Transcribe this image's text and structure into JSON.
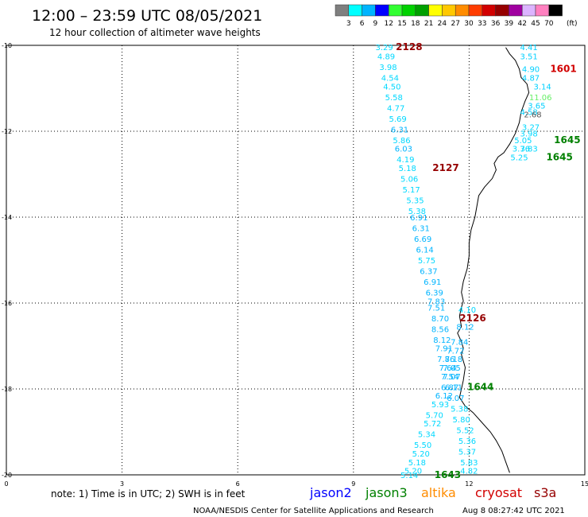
{
  "title": "12:00 – 23:59 UTC 08/05/2021",
  "subtitle": "12 hour collection of altimeter wave heights",
  "colorbar": {
    "values": [
      "3",
      "6",
      "9",
      "12",
      "15",
      "18",
      "21",
      "24",
      "27",
      "30",
      "33",
      "36",
      "39",
      "42",
      "45",
      "70"
    ],
    "colors": [
      "#7f7f7f",
      "#00ffff",
      "#00b4ff",
      "#0000ff",
      "#32ff32",
      "#00d200",
      "#00a000",
      "#ffff00",
      "#ffc800",
      "#ff8c00",
      "#ff3c00",
      "#d20000",
      "#960000",
      "#a000a0",
      "#dcb4ff",
      "#ff80c0",
      "#000000"
    ],
    "unit": "(ft)"
  },
  "note": "note:  1) Time is in UTC;  2) SWH is in feet",
  "credit": "NOAA/NESDIS Center for Satellite Applications and Research",
  "timestamp": "Aug  8 08:27:42 UTC 2021",
  "legend": [
    {
      "name": "jason2",
      "color": "#0000ff"
    },
    {
      "name": "jason3",
      "color": "#008000"
    },
    {
      "name": "altika",
      "color": "#ff8c00"
    },
    {
      "name": "cryosat",
      "color": "#d20000"
    },
    {
      "name": "s3a",
      "color": "#960000"
    }
  ],
  "chart_data": {
    "type": "scatter",
    "xlim": [
      0,
      15
    ],
    "ylim": [
      -20,
      -10
    ],
    "xticks": [
      "0",
      "3",
      "6",
      "9",
      "12",
      "15"
    ],
    "yticks": [
      "-10",
      "-12",
      "-14",
      "-16",
      "-18",
      "-20"
    ],
    "grid": true,
    "coastline": [
      [
        12.95,
        -10.05
      ],
      [
        13.05,
        -10.2
      ],
      [
        13.2,
        -10.35
      ],
      [
        13.3,
        -10.55
      ],
      [
        13.35,
        -10.75
      ],
      [
        13.5,
        -10.9
      ],
      [
        13.55,
        -11.1
      ],
      [
        13.45,
        -11.3
      ],
      [
        13.35,
        -11.55
      ],
      [
        13.3,
        -11.8
      ],
      [
        13.2,
        -12.05
      ],
      [
        13.05,
        -12.3
      ],
      [
        12.9,
        -12.5
      ],
      [
        12.75,
        -12.6
      ],
      [
        12.65,
        -12.75
      ],
      [
        12.7,
        -12.9
      ],
      [
        12.6,
        -13.1
      ],
      [
        12.4,
        -13.3
      ],
      [
        12.25,
        -13.5
      ],
      [
        12.2,
        -13.75
      ],
      [
        12.15,
        -14.0
      ],
      [
        12.05,
        -14.3
      ],
      [
        12.0,
        -14.6
      ],
      [
        12.0,
        -14.9
      ],
      [
        11.95,
        -15.2
      ],
      [
        11.85,
        -15.5
      ],
      [
        11.8,
        -15.75
      ],
      [
        11.85,
        -15.95
      ],
      [
        11.8,
        -16.1
      ],
      [
        11.75,
        -16.3
      ],
      [
        11.8,
        -16.55
      ],
      [
        11.7,
        -16.7
      ],
      [
        11.8,
        -16.9
      ],
      [
        11.85,
        -17.05
      ],
      [
        11.8,
        -17.2
      ],
      [
        11.9,
        -17.5
      ],
      [
        11.85,
        -17.8
      ],
      [
        11.8,
        -18.0
      ],
      [
        11.75,
        -18.2
      ],
      [
        11.9,
        -18.4
      ],
      [
        12.1,
        -18.55
      ],
      [
        12.3,
        -18.75
      ],
      [
        12.55,
        -19.0
      ],
      [
        12.7,
        -19.2
      ],
      [
        12.85,
        -19.45
      ],
      [
        12.95,
        -19.7
      ],
      [
        13.05,
        -19.95
      ]
    ],
    "series": [
      {
        "name": "2128",
        "color": "#960000",
        "label_pos": [
          10.1,
          -10.04
        ],
        "points": [
          {
            "x": 9.8,
            "y": -10.04,
            "v": "3.29"
          },
          {
            "x": 9.85,
            "y": -10.25,
            "v": "4.89"
          },
          {
            "x": 9.9,
            "y": -10.5,
            "v": "3.98"
          },
          {
            "x": 9.95,
            "y": -10.75,
            "v": "4.54"
          },
          {
            "x": 10.0,
            "y": -10.95,
            "v": "4.50"
          },
          {
            "x": 10.05,
            "y": -11.2,
            "v": "5.58"
          },
          {
            "x": 10.1,
            "y": -11.45,
            "v": "4.77"
          },
          {
            "x": 10.15,
            "y": -11.7,
            "v": "5.69"
          },
          {
            "x": 10.2,
            "y": -11.95,
            "v": "6.31"
          },
          {
            "x": 10.25,
            "y": -12.2,
            "v": "5.86"
          },
          {
            "x": 10.3,
            "y": -12.4,
            "v": "6.03"
          },
          {
            "x": 10.35,
            "y": -12.65,
            "v": "4.19"
          },
          {
            "x": 10.4,
            "y": -12.85,
            "v": "5.18"
          }
        ]
      },
      {
        "name": "2127",
        "color": "#960000",
        "label_pos": [
          11.05,
          -12.85
        ],
        "points": [
          {
            "x": 10.45,
            "y": -13.1,
            "v": "5.06"
          },
          {
            "x": 10.5,
            "y": -13.35,
            "v": "5.17"
          },
          {
            "x": 10.6,
            "y": -13.6,
            "v": "5.35"
          },
          {
            "x": 10.65,
            "y": -13.85,
            "v": "5.38"
          },
          {
            "x": 10.7,
            "y": -14.0,
            "v": "6.91"
          },
          {
            "x": 10.75,
            "y": -14.25,
            "v": "6.31"
          },
          {
            "x": 10.8,
            "y": -14.5,
            "v": "6.69"
          },
          {
            "x": 10.85,
            "y": -14.75,
            "v": "6.14"
          },
          {
            "x": 10.9,
            "y": -15.0,
            "v": "5.75"
          },
          {
            "x": 10.95,
            "y": -15.25,
            "v": "6.37"
          },
          {
            "x": 11.05,
            "y": -15.5,
            "v": "6.91"
          },
          {
            "x": 11.1,
            "y": -15.75,
            "v": "6.39"
          },
          {
            "x": 11.15,
            "y": -15.95,
            "v": "7.83"
          },
          {
            "x": 11.15,
            "y": -16.1,
            "v": "7.51"
          },
          {
            "x": 11.25,
            "y": -16.35,
            "v": "8.70"
          },
          {
            "x": 11.25,
            "y": -16.6,
            "v": "8.56"
          },
          {
            "x": 11.3,
            "y": -16.85,
            "v": "8.12"
          },
          {
            "x": 11.35,
            "y": -17.05,
            "v": "7.91"
          },
          {
            "x": 11.4,
            "y": -17.3,
            "v": "7.86"
          },
          {
            "x": 11.45,
            "y": -17.5,
            "v": "7.64"
          },
          {
            "x": 11.5,
            "y": -17.7,
            "v": "7.54"
          },
          {
            "x": 11.5,
            "y": -17.95,
            "v": "6.87"
          },
          {
            "x": 11.35,
            "y": -18.15,
            "v": "6.12"
          },
          {
            "x": 11.25,
            "y": -18.35,
            "v": "5.93"
          },
          {
            "x": 11.1,
            "y": -18.6,
            "v": "5.70"
          },
          {
            "x": 11.05,
            "y": -18.8,
            "v": "5.72"
          },
          {
            "x": 10.9,
            "y": -19.05,
            "v": "5.34"
          },
          {
            "x": 10.8,
            "y": -19.3,
            "v": "5.50"
          },
          {
            "x": 10.75,
            "y": -19.5,
            "v": "5.20"
          },
          {
            "x": 10.65,
            "y": -19.7,
            "v": "5.18"
          },
          {
            "x": 10.55,
            "y": -19.9,
            "v": "5.20"
          },
          {
            "x": 10.45,
            "y": -20.0,
            "v": "5.14"
          }
        ]
      },
      {
        "name": "1643",
        "color": "#008000",
        "label_pos": [
          11.1,
          -20.0
        ],
        "points": [
          {
            "x": 12.0,
            "y": -19.9,
            "v": "4.82"
          },
          {
            "x": 12.0,
            "y": -19.7,
            "v": "5.83"
          },
          {
            "x": 11.95,
            "y": -19.45,
            "v": "5.37"
          },
          {
            "x": 11.95,
            "y": -19.2,
            "v": "5.36"
          },
          {
            "x": 11.9,
            "y": -18.95,
            "v": "5.52"
          },
          {
            "x": 11.8,
            "y": -18.7,
            "v": "5.80"
          },
          {
            "x": 11.75,
            "y": -18.45,
            "v": "5.38"
          },
          {
            "x": 11.65,
            "y": -18.2,
            "v": "6.07"
          }
        ]
      },
      {
        "name": "1644",
        "color": "#008000",
        "label_pos": [
          11.95,
          -17.95
        ],
        "points": [
          {
            "x": 11.6,
            "y": -17.95,
            "v": "6.11"
          },
          {
            "x": 11.55,
            "y": -17.7,
            "v": "7.07"
          },
          {
            "x": 11.55,
            "y": -17.5,
            "v": "7.05"
          },
          {
            "x": 11.6,
            "y": -17.3,
            "v": "7.18"
          },
          {
            "x": 11.65,
            "y": -17.1,
            "v": "7.72"
          },
          {
            "x": 11.75,
            "y": -16.9,
            "v": "7.84"
          },
          {
            "x": 11.9,
            "y": -16.55,
            "v": "8.12"
          },
          {
            "x": 11.95,
            "y": -16.15,
            "v": "4.10"
          }
        ]
      },
      {
        "name": "2126",
        "color": "#960000",
        "label_pos": [
          11.75,
          -16.35
        ],
        "points": []
      },
      {
        "name": "1645",
        "color": "#008000",
        "label_pos": [
          14.2,
          -12.2
        ],
        "points": [
          {
            "x": 13.3,
            "y": -12.6,
            "v": "5.25"
          },
          {
            "x": 13.35,
            "y": -12.4,
            "v": "3.76"
          },
          {
            "x": 13.55,
            "y": -12.4,
            "v": "3.83"
          },
          {
            "x": 13.4,
            "y": -12.2,
            "v": "5.05"
          },
          {
            "x": 13.55,
            "y": -12.05,
            "v": "3.98"
          },
          {
            "x": 13.6,
            "y": -11.9,
            "v": "3.27"
          }
        ]
      },
      {
        "name": "1645",
        "color": "#008000",
        "label_pos": [
          14.0,
          -12.6
        ],
        "points": []
      },
      {
        "name": "1601",
        "color": "#d20000",
        "label_pos": [
          14.1,
          -10.55
        ],
        "points": [
          {
            "x": 13.55,
            "y": -11.55,
            "v": "4.58"
          },
          {
            "x": 13.65,
            "y": -11.6,
            "v": "2.68"
          },
          {
            "x": 13.75,
            "y": -11.4,
            "v": "3.65"
          },
          {
            "x": 13.85,
            "y": -11.2,
            "v": "11.06"
          },
          {
            "x": 13.9,
            "y": -10.95,
            "v": "3.14"
          },
          {
            "x": 13.6,
            "y": -10.75,
            "v": "4.87"
          },
          {
            "x": 13.6,
            "y": -10.55,
            "v": "4.90"
          },
          {
            "x": 13.55,
            "y": -10.25,
            "v": "3.51"
          },
          {
            "x": 13.55,
            "y": -10.04,
            "v": "4.41"
          }
        ]
      }
    ],
    "label_colors": {
      "4.41": "#00d0ff",
      "3.51": "#00d0ff",
      "4.90": "#00d0ff",
      "4.87": "#00d0ff",
      "3.14": "#00d0ff",
      "11.06": "#66ee66",
      "3.65": "#00d0ff",
      "2.68": "#555555",
      "4.58": "#00d0ff"
    }
  }
}
